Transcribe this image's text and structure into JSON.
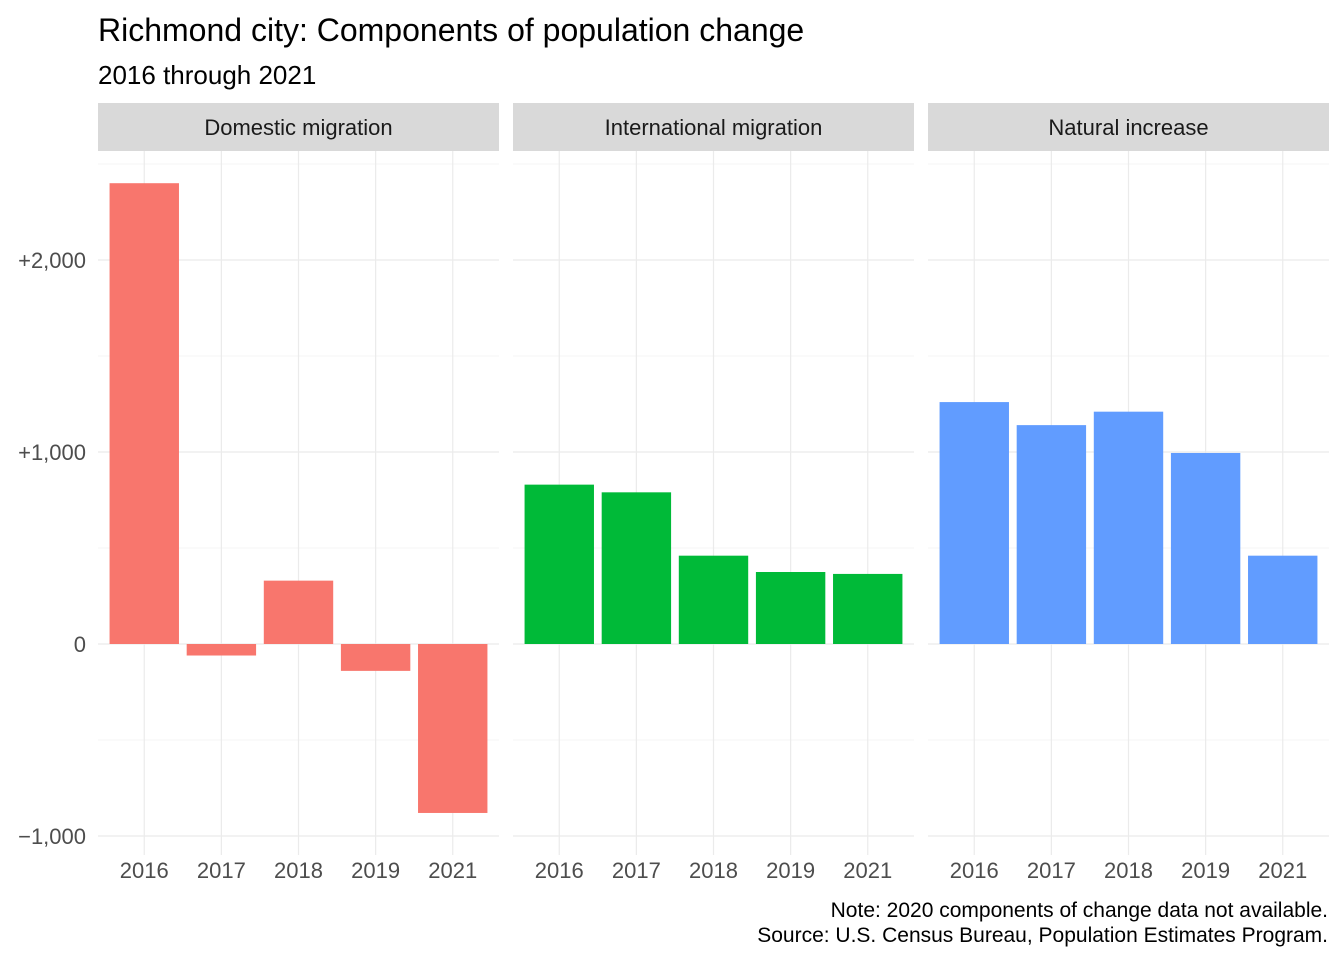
{
  "chart_data": {
    "type": "bar",
    "title": "Richmond city: Components of population change",
    "subtitle": "2016 through 2021",
    "categories": [
      "2016",
      "2017",
      "2018",
      "2019",
      "2021"
    ],
    "series": [
      {
        "name": "Domestic migration",
        "color": "#F8766D",
        "values": [
          2400,
          -60,
          330,
          -140,
          -880
        ]
      },
      {
        "name": "International migration",
        "color": "#00BA38",
        "values": [
          830,
          790,
          460,
          375,
          365
        ]
      },
      {
        "name": "Natural increase",
        "color": "#619CFF",
        "values": [
          1260,
          1140,
          1210,
          995,
          460
        ]
      }
    ],
    "ylim": [
      -1100,
      2520
    ],
    "yticks": [
      -1000,
      0,
      1000,
      2000
    ],
    "ytick_labels": [
      "−1,000",
      "0",
      "+1,000",
      "+2,000"
    ],
    "facet_by": "series",
    "legend": "none",
    "grid": true,
    "note": "Note: 2020 components of change data not available.",
    "source": "Source: U.S. Census Bureau, Population Estimates Program."
  }
}
